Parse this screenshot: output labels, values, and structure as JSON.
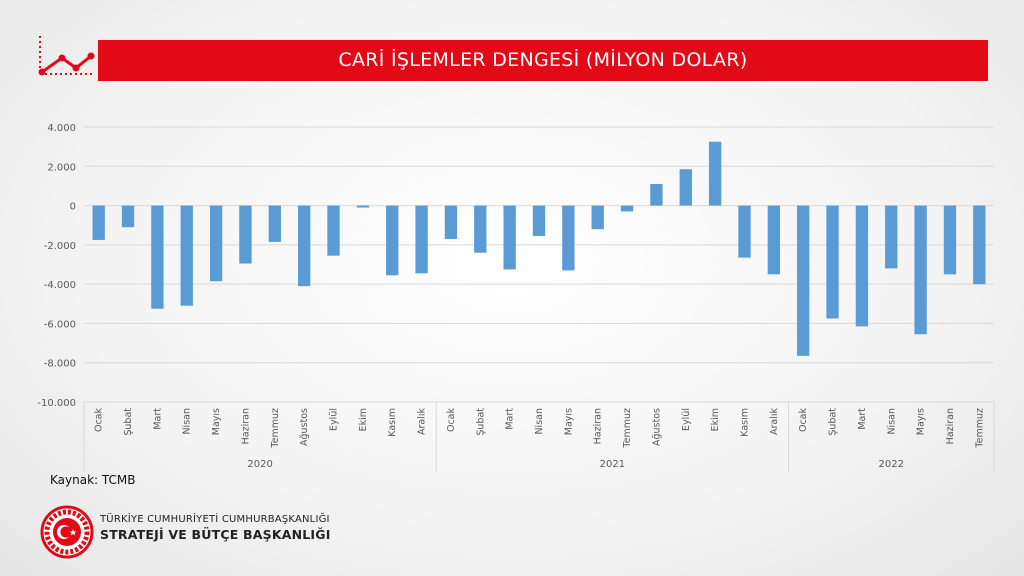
{
  "header": {
    "title": "CARİ İŞLEMLER DENGESİ (MİLYON DOLAR)",
    "icon": "trend-line-icon",
    "accent_color": "#e30a17"
  },
  "source": "Kaynak: TCMB",
  "organization": {
    "line1": "TÜRKİYE CUMHURİYETİ CUMHURBAŞKANLIĞI",
    "line2": "STRATEJİ VE BÜTÇE BAŞKANLIĞI",
    "logo": "presidency-seal-logo"
  },
  "chart_data": {
    "type": "bar",
    "bar_color": "#5b9bd5",
    "ylim": [
      -10000,
      4000
    ],
    "yticks": [
      4000,
      2000,
      0,
      -2000,
      -4000,
      -6000,
      -8000,
      -10000
    ],
    "ytick_labels": [
      "4.000",
      "2.000",
      "0",
      "-2.000",
      "-4.000",
      "-6.000",
      "-8.000",
      "-10.000"
    ],
    "grid": true,
    "categories": [
      "Ocak",
      "Şubat",
      "Mart",
      "Nisan",
      "Mayıs",
      "Haziran",
      "Temmuz",
      "Ağustos",
      "Eylül",
      "Ekim",
      "Kasım",
      "Aralık",
      "Ocak",
      "Şubat",
      "Mart",
      "Nisan",
      "Mayıs",
      "Haziran",
      "Temmuz",
      "Ağustos",
      "Eylül",
      "Ekim",
      "Kasım",
      "Aralık",
      "Ocak",
      "Şubat",
      "Mart",
      "Nisan",
      "Mayıs",
      "Haziran",
      "Temmuz"
    ],
    "groups": [
      {
        "label": "2020",
        "count": 12
      },
      {
        "label": "2021",
        "count": 12
      },
      {
        "label": "2022",
        "count": 7
      }
    ],
    "values": [
      -1750,
      -1100,
      -5250,
      -5100,
      -3850,
      -2950,
      -1850,
      -4100,
      -2550,
      -100,
      -3550,
      -3450,
      -1700,
      -2400,
      -3250,
      -1550,
      -3300,
      -1200,
      -300,
      1100,
      1850,
      3250,
      -2650,
      -3500,
      -7650,
      -5750,
      -6150,
      -3200,
      -6550,
      -3500,
      -4000
    ]
  }
}
